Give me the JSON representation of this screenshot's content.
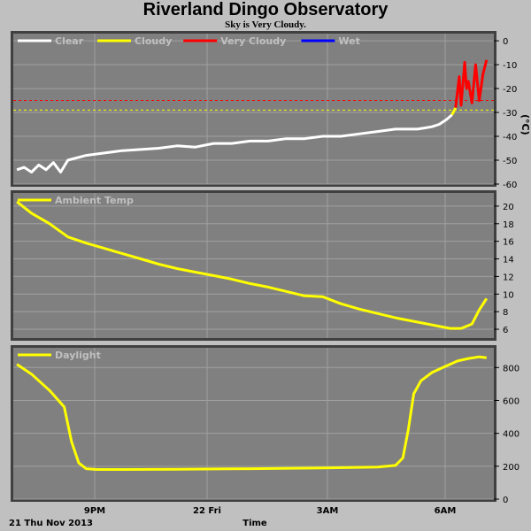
{
  "header": {
    "title": "Riverland Dingo Observatory",
    "subtitle": "Sky is Very Cloudy."
  },
  "footer": {
    "date_label": "21 Thu Nov 2013",
    "time_label": "Time"
  },
  "colors": {
    "background": "#c0c0c0",
    "plot_bg": "#808080",
    "grid": "#a0a0a0",
    "clear": "#ffffff",
    "cloudy": "#ffff00",
    "very_cloudy": "#ff0000",
    "wet": "#0000ff"
  },
  "chart_data": [
    {
      "type": "line",
      "ylabel": "(°C)",
      "ylim": [
        -60,
        3
      ],
      "yticks": [
        "0",
        "-10",
        "-20",
        "-30",
        "-40",
        "-50",
        "-60"
      ],
      "xticks": [
        "9PM",
        "22 Fri",
        "3AM",
        "6AM"
      ],
      "xlim": [
        18.5,
        31.7
      ],
      "legend": [
        {
          "name": "Clear",
          "color": "#ffffff"
        },
        {
          "name": "Cloudy",
          "color": "#ffff00"
        },
        {
          "name": "Very Cloudy",
          "color": "#ff0000"
        },
        {
          "name": "Wet",
          "color": "#0000ff"
        }
      ],
      "thresholds": [
        {
          "value": -25,
          "color": "#ff0000"
        },
        {
          "value": -29,
          "color": "#ffff00"
        }
      ],
      "series": [
        {
          "name": "Clear",
          "color": "#ffffff",
          "x": [
            18.6,
            18.8,
            19.0,
            19.2,
            19.4,
            19.6,
            19.8,
            20.0,
            20.5,
            21.0,
            21.5,
            22.0,
            22.5,
            23.0,
            23.5,
            24.0,
            24.5,
            25.0,
            25.5,
            26.0,
            26.5,
            27.0,
            27.5,
            28.0,
            28.5,
            29.0,
            29.3,
            29.6,
            29.8,
            30.0,
            30.2,
            30.4,
            30.55
          ],
          "y": [
            -54,
            -53,
            -55,
            -52,
            -54,
            -51,
            -55,
            -50,
            -48,
            -47,
            -46,
            -45.5,
            -45,
            -44,
            -44.5,
            -43,
            -43,
            -42,
            -42,
            -41,
            -41,
            -40,
            -40,
            -39,
            -38,
            -37,
            -37,
            -37,
            -36.5,
            -36,
            -35,
            -33,
            -31
          ]
        },
        {
          "name": "Cloudy",
          "color": "#ffff00",
          "x": [
            30.55,
            30.65
          ],
          "y": [
            -31,
            -28
          ]
        },
        {
          "name": "Very Cloudy",
          "color": "#ff0000",
          "x": [
            30.65,
            30.75,
            30.8,
            30.9,
            30.95,
            31.0,
            31.1,
            31.2,
            31.3,
            31.4,
            31.5
          ],
          "y": [
            -28,
            -15,
            -27,
            -9,
            -20,
            -17,
            -26,
            -10,
            -25,
            -14,
            -8
          ]
        }
      ]
    },
    {
      "type": "line",
      "ylim": [
        5,
        21.5
      ],
      "yticks": [
        "20",
        "18",
        "16",
        "14",
        "12",
        "10",
        "8",
        "6"
      ],
      "xticks": [
        "9PM",
        "22 Fri",
        "3AM",
        "6AM"
      ],
      "xlim": [
        18.5,
        31.7
      ],
      "legend": [
        {
          "name": "Ambient Temp",
          "color": "#ffff00"
        }
      ],
      "series": [
        {
          "name": "Ambient Temp",
          "color": "#ffff00",
          "x": [
            18.6,
            19.0,
            19.5,
            20.0,
            20.5,
            21.0,
            21.5,
            22.0,
            22.5,
            23.0,
            23.5,
            24.0,
            24.5,
            25.0,
            25.5,
            26.0,
            26.5,
            27.0,
            27.5,
            28.0,
            28.5,
            29.0,
            29.5,
            30.0,
            30.5,
            30.8,
            31.1,
            31.3,
            31.5
          ],
          "y": [
            20.5,
            19.2,
            18,
            16.5,
            15.8,
            15.2,
            14.6,
            14,
            13.4,
            12.9,
            12.5,
            12.1,
            11.7,
            11.2,
            10.8,
            10.3,
            9.8,
            9.7,
            8.9,
            8.3,
            7.8,
            7.3,
            6.9,
            6.5,
            6.1,
            6.1,
            6.6,
            8.2,
            9.5
          ]
        }
      ]
    },
    {
      "type": "line",
      "ylim": [
        0,
        920
      ],
      "yticks": [
        "800",
        "600",
        "400",
        "200",
        "0"
      ],
      "xticks": [
        "9PM",
        "22 Fri",
        "3AM",
        "6AM"
      ],
      "xlim": [
        18.5,
        31.7
      ],
      "legend": [
        {
          "name": "Daylight",
          "color": "#ffff00"
        }
      ],
      "series": [
        {
          "name": "Daylight",
          "color": "#ffff00",
          "x": [
            18.6,
            19.0,
            19.5,
            19.9,
            20.1,
            20.3,
            20.5,
            20.8,
            21.5,
            23.0,
            25.0,
            27.0,
            28.5,
            29.0,
            29.2,
            29.35,
            29.5,
            29.7,
            30.0,
            30.3,
            30.7,
            31.0,
            31.3,
            31.5
          ],
          "y": [
            820,
            760,
            660,
            560,
            350,
            220,
            185,
            180,
            180,
            182,
            185,
            190,
            195,
            205,
            250,
            420,
            640,
            720,
            770,
            800,
            840,
            855,
            865,
            860
          ]
        }
      ]
    }
  ]
}
